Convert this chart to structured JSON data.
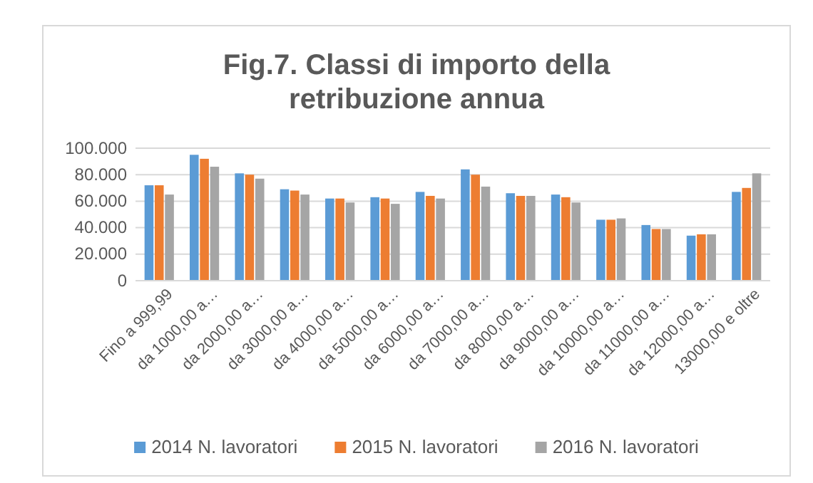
{
  "chart_data": {
    "type": "bar",
    "title": "Fig.7. Classi di importo della retribuzione annua",
    "categories": [
      "Fino a 999,99",
      "da 1000,00 a…",
      "da 2000,00 a…",
      "da 3000,00 a…",
      "da 4000,00 a…",
      "da 5000,00 a…",
      "da 6000,00 a…",
      "da 7000,00 a…",
      "da 8000,00 a…",
      "da 9000,00 a…",
      "da 10000,00 a…",
      "da 11000,00 a…",
      "da 12000,00 a…",
      "13000,00 e oltre"
    ],
    "series": [
      {
        "name": "2014 N. lavoratori",
        "color": "#5b9bd5",
        "values": [
          72000,
          95000,
          81000,
          69000,
          62000,
          63000,
          67000,
          84000,
          66000,
          65000,
          46000,
          42000,
          34000,
          67000
        ]
      },
      {
        "name": "2015 N. lavoratori",
        "color": "#ed7d31",
        "values": [
          72000,
          92000,
          80000,
          68000,
          62000,
          62000,
          64000,
          80000,
          64000,
          63000,
          46000,
          39000,
          35000,
          70000
        ]
      },
      {
        "name": "2016 N. lavoratori",
        "color": "#a5a5a5",
        "values": [
          65000,
          86000,
          77000,
          65000,
          59000,
          58000,
          62000,
          71000,
          64000,
          59000,
          47000,
          39000,
          35000,
          81000
        ]
      }
    ],
    "ylim": [
      0,
      100000
    ],
    "yticks": [
      {
        "value": 0,
        "label": "0"
      },
      {
        "value": 20000,
        "label": "20.000"
      },
      {
        "value": 40000,
        "label": "40.000"
      },
      {
        "value": 60000,
        "label": "60.000"
      },
      {
        "value": 80000,
        "label": "80.000"
      },
      {
        "value": 100000,
        "label": "100.000"
      }
    ],
    "grid": "y",
    "legend": "bottom"
  }
}
